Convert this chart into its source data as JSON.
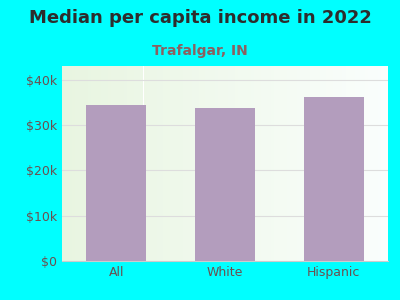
{
  "title": "Median per capita income in 2022",
  "subtitle": "Trafalgar, IN",
  "categories": [
    "All",
    "White",
    "Hispanic"
  ],
  "values": [
    34500,
    33800,
    36200
  ],
  "bar_color": "#b39dbd",
  "background_outer": "#00ffff",
  "title_color": "#2d2d2d",
  "subtitle_color": "#8b6060",
  "tick_label_color": "#6b5050",
  "ytick_labels": [
    "$0",
    "$10k",
    "$20k",
    "$30k",
    "$40k"
  ],
  "ytick_values": [
    0,
    10000,
    20000,
    30000,
    40000
  ],
  "ylim": [
    0,
    43000
  ],
  "title_fontsize": 13,
  "subtitle_fontsize": 10,
  "tick_fontsize": 9,
  "grid_color": "#dddddd"
}
